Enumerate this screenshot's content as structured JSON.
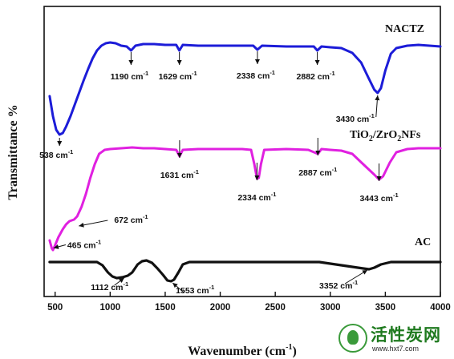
{
  "chart_data": {
    "type": "line",
    "xlabel": "Wavenumber (cm",
    "xlabel_sup": "-1",
    "xlabel_tail": ")",
    "ylabel": "Transmittance %",
    "xlim": [
      400,
      4000
    ],
    "x_ticks": [
      500,
      1000,
      1500,
      2000,
      2500,
      3000,
      3500,
      4000
    ],
    "y_ticks": [],
    "grid": false,
    "legend": "inline labels",
    "series": [
      {
        "name": "NACTZ",
        "color": "#1c1cd8",
        "points": [
          [
            450,
            120
          ],
          [
            480,
            145
          ],
          [
            510,
            162
          ],
          [
            540,
            168
          ],
          [
            570,
            166
          ],
          [
            600,
            158
          ],
          [
            640,
            145
          ],
          [
            680,
            130
          ],
          [
            720,
            115
          ],
          [
            760,
            100
          ],
          [
            800,
            86
          ],
          [
            840,
            73
          ],
          [
            880,
            63
          ],
          [
            920,
            57
          ],
          [
            960,
            54
          ],
          [
            1000,
            53
          ],
          [
            1050,
            54
          ],
          [
            1100,
            57
          ],
          [
            1150,
            58
          ],
          [
            1190,
            63
          ],
          [
            1230,
            57
          ],
          [
            1300,
            55
          ],
          [
            1400,
            55
          ],
          [
            1500,
            56
          ],
          [
            1600,
            56
          ],
          [
            1629,
            63
          ],
          [
            1660,
            56
          ],
          [
            1800,
            57
          ],
          [
            2000,
            57
          ],
          [
            2200,
            57
          ],
          [
            2300,
            57
          ],
          [
            2338,
            62
          ],
          [
            2380,
            57
          ],
          [
            2600,
            58
          ],
          [
            2800,
            58
          ],
          [
            2850,
            58
          ],
          [
            2882,
            63
          ],
          [
            2920,
            58
          ],
          [
            3000,
            59
          ],
          [
            3100,
            60
          ],
          [
            3200,
            66
          ],
          [
            3280,
            78
          ],
          [
            3350,
            98
          ],
          [
            3400,
            112
          ],
          [
            3430,
            116
          ],
          [
            3460,
            110
          ],
          [
            3500,
            88
          ],
          [
            3550,
            67
          ],
          [
            3600,
            60
          ],
          [
            3700,
            57
          ],
          [
            3800,
            56
          ],
          [
            3900,
            57
          ],
          [
            4000,
            58
          ]
        ]
      },
      {
        "name": "TiO2/ZrO2NFs",
        "color": "#e020e0",
        "points": [
          [
            450,
            300
          ],
          [
            470,
            310
          ],
          [
            480,
            312
          ],
          [
            500,
            306
          ],
          [
            530,
            296
          ],
          [
            570,
            286
          ],
          [
            600,
            280
          ],
          [
            630,
            276
          ],
          [
            672,
            274
          ],
          [
            700,
            270
          ],
          [
            740,
            258
          ],
          [
            780,
            242
          ],
          [
            820,
            222
          ],
          [
            860,
            205
          ],
          [
            900,
            192
          ],
          [
            950,
            187
          ],
          [
            1000,
            186
          ],
          [
            1100,
            185
          ],
          [
            1200,
            184
          ],
          [
            1300,
            185
          ],
          [
            1400,
            185
          ],
          [
            1500,
            186
          ],
          [
            1600,
            187
          ],
          [
            1631,
            195
          ],
          [
            1660,
            187
          ],
          [
            1800,
            186
          ],
          [
            2000,
            186
          ],
          [
            2200,
            186
          ],
          [
            2280,
            187
          ],
          [
            2310,
            205
          ],
          [
            2334,
            223
          ],
          [
            2350,
            222
          ],
          [
            2370,
            205
          ],
          [
            2400,
            187
          ],
          [
            2600,
            186
          ],
          [
            2800,
            187
          ],
          [
            2887,
            192
          ],
          [
            2920,
            186
          ],
          [
            3000,
            187
          ],
          [
            3100,
            188
          ],
          [
            3200,
            192
          ],
          [
            3300,
            205
          ],
          [
            3400,
            218
          ],
          [
            3443,
            224
          ],
          [
            3480,
            220
          ],
          [
            3540,
            203
          ],
          [
            3600,
            190
          ],
          [
            3700,
            186
          ],
          [
            3800,
            185
          ],
          [
            3900,
            185
          ],
          [
            4000,
            185
          ]
        ]
      },
      {
        "name": "AC",
        "color": "#111111",
        "points": [
          [
            450,
            327
          ],
          [
            600,
            327
          ],
          [
            800,
            327
          ],
          [
            880,
            327
          ],
          [
            930,
            331
          ],
          [
            980,
            340
          ],
          [
            1020,
            345
          ],
          [
            1060,
            347
          ],
          [
            1112,
            346
          ],
          [
            1160,
            344
          ],
          [
            1200,
            340
          ],
          [
            1250,
            330
          ],
          [
            1290,
            326
          ],
          [
            1330,
            325
          ],
          [
            1380,
            328
          ],
          [
            1430,
            335
          ],
          [
            1480,
            343
          ],
          [
            1520,
            350
          ],
          [
            1553,
            351
          ],
          [
            1580,
            349
          ],
          [
            1620,
            340
          ],
          [
            1660,
            330
          ],
          [
            1720,
            327
          ],
          [
            2000,
            327
          ],
          [
            2500,
            327
          ],
          [
            2900,
            327
          ],
          [
            3000,
            329
          ],
          [
            3100,
            331
          ],
          [
            3200,
            333
          ],
          [
            3300,
            335
          ],
          [
            3352,
            336
          ],
          [
            3400,
            334
          ],
          [
            3460,
            330
          ],
          [
            3550,
            327
          ],
          [
            3800,
            327
          ],
          [
            4000,
            327
          ]
        ]
      }
    ],
    "series_labels": [
      {
        "text_main": "NACTZ",
        "subs": []
      },
      {
        "text_main": "TiO",
        "sub1": "2",
        "mid": "/ZrO",
        "sub2": "2",
        "tail": "NFs"
      },
      {
        "text_main": "AC",
        "subs": []
      }
    ],
    "annotations": [
      {
        "label": "1190",
        "series": 0,
        "x": 1190
      },
      {
        "label": "1629",
        "series": 0,
        "x": 1629
      },
      {
        "label": "2338",
        "series": 0,
        "x": 2338
      },
      {
        "label": "2882",
        "series": 0,
        "x": 2882
      },
      {
        "label": "3430",
        "series": 0,
        "x": 3430
      },
      {
        "label": "538",
        "series": 0,
        "x": 540
      },
      {
        "label": "1631",
        "series": 1,
        "x": 1631
      },
      {
        "label": "2334",
        "series": 1,
        "x": 2334
      },
      {
        "label": "2887",
        "series": 1,
        "x": 2887
      },
      {
        "label": "3443",
        "series": 1,
        "x": 3443
      },
      {
        "label": "672",
        "series": 1,
        "x": 672
      },
      {
        "label": "465",
        "series": 1,
        "x": 465
      },
      {
        "label": "1112",
        "series": 2,
        "x": 1112
      },
      {
        "label": "1553",
        "series": 2,
        "x": 1553
      },
      {
        "label": "3352",
        "series": 2,
        "x": 3352
      }
    ],
    "unit_text": "cm",
    "unit_sup": "-1"
  },
  "watermark": {
    "title": "活性炭网",
    "url": "www.hxt7.com"
  }
}
